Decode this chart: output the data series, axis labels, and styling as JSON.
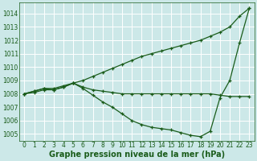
{
  "bg_color": "#cce8e8",
  "grid_color": "#ffffff",
  "line_color": "#1a5c1a",
  "title": "Graphe pression niveau de la mer (hPa)",
  "xlim": [
    -0.5,
    23.5
  ],
  "ylim": [
    1004.5,
    1014.8
  ],
  "xticks": [
    0,
    1,
    2,
    3,
    4,
    5,
    6,
    7,
    8,
    9,
    10,
    11,
    12,
    13,
    14,
    15,
    16,
    17,
    18,
    19,
    20,
    21,
    22,
    23
  ],
  "yticks": [
    1005,
    1006,
    1007,
    1008,
    1009,
    1010,
    1011,
    1012,
    1013,
    1014
  ],
  "series": [
    {
      "x": [
        0,
        1,
        2,
        3,
        4,
        5,
        6,
        7,
        8,
        9,
        10,
        11,
        12,
        13,
        14,
        15,
        16,
        17,
        18,
        19,
        20,
        21,
        22,
        23
      ],
      "y": [
        1008.0,
        1008.2,
        1008.4,
        1008.4,
        1008.6,
        1008.8,
        1009.0,
        1009.3,
        1009.6,
        1009.9,
        1010.2,
        1010.5,
        1010.8,
        1011.0,
        1011.2,
        1011.4,
        1011.6,
        1011.8,
        1012.0,
        1012.3,
        1012.6,
        1013.0,
        1013.8,
        1014.4
      ]
    },
    {
      "x": [
        0,
        1,
        2,
        3,
        4,
        5,
        6,
        7,
        8,
        9,
        10,
        11,
        12,
        13,
        14,
        15,
        16,
        17,
        18,
        19,
        20,
        21,
        22,
        23
      ],
      "y": [
        1008.0,
        1008.1,
        1008.3,
        1008.3,
        1008.5,
        1008.8,
        1008.5,
        1008.3,
        1008.2,
        1008.1,
        1008.0,
        1008.0,
        1008.0,
        1008.0,
        1008.0,
        1008.0,
        1008.0,
        1008.0,
        1008.0,
        1008.0,
        1007.9,
        1007.8,
        1007.8,
        1007.8
      ]
    },
    {
      "x": [
        0,
        1,
        2,
        3,
        4,
        5,
        6,
        7,
        8,
        9,
        10,
        11,
        12,
        13,
        14,
        15,
        16,
        17,
        18,
        19,
        20,
        21,
        22,
        23
      ],
      "y": [
        1008.0,
        1008.2,
        1008.4,
        1008.3,
        1008.5,
        1008.8,
        1008.4,
        1007.9,
        1007.4,
        1007.0,
        1006.5,
        1006.0,
        1005.7,
        1005.5,
        1005.4,
        1005.3,
        1005.1,
        1004.9,
        1004.8,
        1005.2,
        1007.7,
        1009.0,
        1011.8,
        1014.4
      ]
    }
  ],
  "title_fontsize": 7,
  "tick_fontsize": 5.5,
  "linewidth": 0.9,
  "markersize": 2.5
}
